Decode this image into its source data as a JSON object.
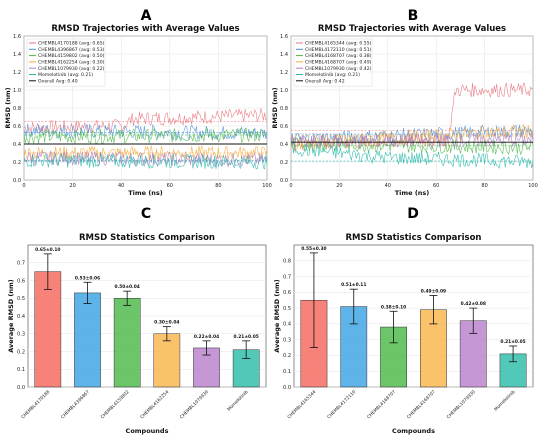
{
  "panels": {
    "a": "A",
    "b": "B",
    "c": "C",
    "d": "D"
  },
  "colors": {
    "series": [
      "#e8747c",
      "#4a90d9",
      "#4cb848",
      "#f4a736",
      "#b07cc6",
      "#26b8aa",
      "#111111"
    ],
    "bars": [
      "#f4665c",
      "#3aa3e3",
      "#4cb848",
      "#f8b54a",
      "#b880cc",
      "#2cbca8"
    ]
  },
  "chart_data": [
    {
      "id": "A",
      "type": "line",
      "title": "RMSD Trajectories with Average Values",
      "xlabel": "Time (ns)",
      "ylabel": "RMSD (nm)",
      "xlim": [
        0,
        100
      ],
      "ylim": [
        0,
        1.6
      ],
      "xticks": [
        0,
        20,
        40,
        60,
        80,
        100
      ],
      "yticks": [
        0,
        0.2,
        0.4,
        0.6,
        0.8,
        1.0,
        1.2,
        1.4,
        1.6
      ],
      "grid": true,
      "legend": "top-left",
      "series": [
        {
          "name": "CHEMBL4170188 (avg: 0.65)",
          "avg": 0.65,
          "profile": [
            [
              0,
              0.58
            ],
            [
              40,
              0.6
            ],
            [
              45,
              0.68
            ],
            [
              100,
              0.72
            ]
          ]
        },
        {
          "name": "CHEMBL4396867 (avg: 0.53)",
          "avg": 0.53,
          "profile": [
            [
              0,
              0.55
            ],
            [
              100,
              0.52
            ]
          ]
        },
        {
          "name": "CHEMBL4159802 (avg: 0.50)",
          "avg": 0.5,
          "profile": [
            [
              0,
              0.48
            ],
            [
              100,
              0.5
            ]
          ]
        },
        {
          "name": "CHEMBL4162254 (avg: 0.30)",
          "avg": 0.3,
          "profile": [
            [
              0,
              0.3
            ],
            [
              100,
              0.3
            ]
          ]
        },
        {
          "name": "CHEMBL1079930 (avg: 0.22)",
          "avg": 0.22,
          "profile": [
            [
              0,
              0.25
            ],
            [
              100,
              0.22
            ]
          ]
        },
        {
          "name": "Momelotinib (avg: 0.21)",
          "avg": 0.21,
          "profile": [
            [
              0,
              0.22
            ],
            [
              100,
              0.2
            ]
          ]
        }
      ],
      "overall": {
        "name": "Overall Avg: 0.40",
        "value": 0.4
      }
    },
    {
      "id": "B",
      "type": "line",
      "title": "RMSD Trajectories with Average Values",
      "xlabel": "Time (ns)",
      "ylabel": "RMSD (nm)",
      "xlim": [
        0,
        100
      ],
      "ylim": [
        0,
        1.6
      ],
      "xticks": [
        0,
        20,
        40,
        60,
        80,
        100
      ],
      "yticks": [
        0,
        0.2,
        0.4,
        0.6,
        0.8,
        1.0,
        1.2,
        1.4,
        1.6
      ],
      "grid": true,
      "legend": "top-left",
      "series": [
        {
          "name": "CHEMBL4165344 (avg: 0.55)",
          "avg": 0.55,
          "profile": [
            [
              0,
              0.4
            ],
            [
              65,
              0.45
            ],
            [
              68,
              1.0
            ],
            [
              100,
              1.0
            ]
          ]
        },
        {
          "name": "CHEMBL4172110 (avg: 0.51)",
          "avg": 0.51,
          "profile": [
            [
              0,
              0.45
            ],
            [
              100,
              0.55
            ]
          ]
        },
        {
          "name": "CHEMBL4168707 (avg: 0.38)",
          "avg": 0.38,
          "profile": [
            [
              0,
              0.4
            ],
            [
              100,
              0.36
            ]
          ]
        },
        {
          "name": "CHEMBL4168707 (avg: 0.49)",
          "avg": 0.49,
          "profile": [
            [
              0,
              0.4
            ],
            [
              100,
              0.55
            ]
          ]
        },
        {
          "name": "CHEMBL1079930 (avg: 0.42)",
          "avg": 0.42,
          "profile": [
            [
              0,
              0.42
            ],
            [
              100,
              0.45
            ]
          ]
        },
        {
          "name": "Momelotinib (avg: 0.21)",
          "avg": 0.21,
          "profile": [
            [
              0,
              0.35
            ],
            [
              40,
              0.25
            ],
            [
              100,
              0.2
            ]
          ]
        }
      ],
      "overall": {
        "name": "Overall Avg: 0.42",
        "value": 0.42
      }
    },
    {
      "id": "C",
      "type": "bar",
      "title": "RMSD Statistics Comparison",
      "xlabel": "Compounds",
      "ylabel": "Average RMSD (nm)",
      "ylim": [
        0,
        0.8
      ],
      "yticks": [
        0,
        0.1,
        0.2,
        0.3,
        0.4,
        0.5,
        0.6,
        0.7
      ],
      "grid": true,
      "categories": [
        "CHEMBL4170188",
        "CHEMBL4396867",
        "CHEMBL4159802",
        "CHEMBL4162254",
        "CHEMBL1079930",
        "Momelotinib"
      ],
      "values": [
        0.65,
        0.53,
        0.5,
        0.3,
        0.22,
        0.21
      ],
      "errors": [
        0.1,
        0.06,
        0.04,
        0.04,
        0.04,
        0.05
      ],
      "value_labels": [
        "0.65±0.10",
        "0.53±0.06",
        "0.50±0.04",
        "0.30±0.04",
        "0.22±0.04",
        "0.21±0.05"
      ]
    },
    {
      "id": "D",
      "type": "bar",
      "title": "RMSD Statistics Comparison",
      "xlabel": "Compounds",
      "ylabel": "Average RMSD (nm)",
      "ylim": [
        0,
        0.9
      ],
      "yticks": [
        0,
        0.1,
        0.2,
        0.3,
        0.4,
        0.5,
        0.6,
        0.7,
        0.8
      ],
      "grid": true,
      "categories": [
        "CHEMBL4165344",
        "CHEMBL4172110",
        "CHEMBL4168707",
        "CHEMBL4168707",
        "CHEMBL1079930",
        "Momelotinib"
      ],
      "values": [
        0.55,
        0.51,
        0.38,
        0.49,
        0.42,
        0.21
      ],
      "errors": [
        0.3,
        0.11,
        0.1,
        0.09,
        0.08,
        0.05
      ],
      "value_labels": [
        "0.55±0.30",
        "0.51±0.11",
        "0.38±0.10",
        "0.49±0.09",
        "0.42±0.08",
        "0.21±0.05"
      ]
    }
  ]
}
